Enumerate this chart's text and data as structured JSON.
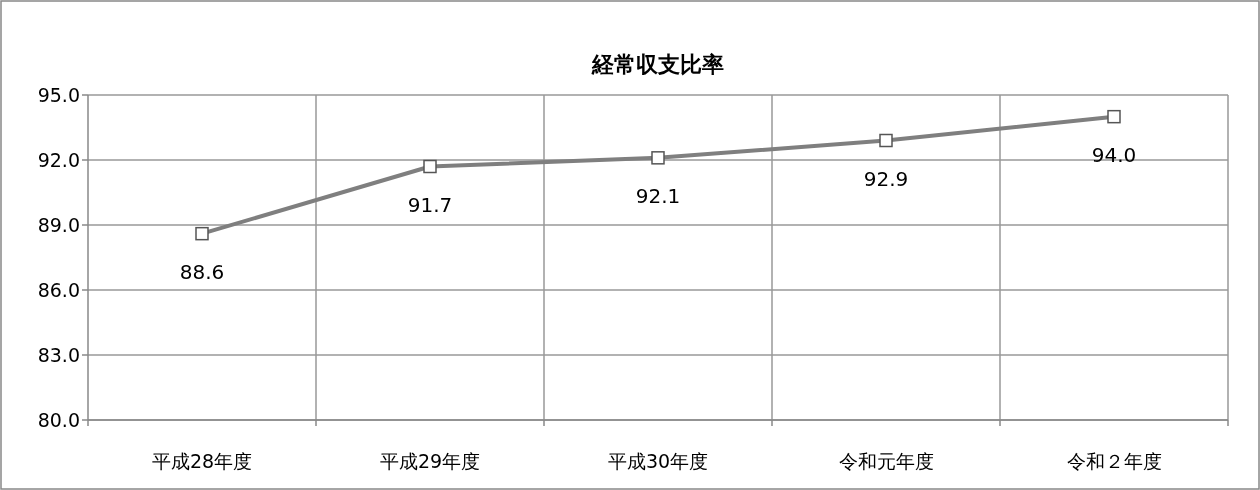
{
  "chart_data": {
    "type": "line",
    "title": "経常収支比率",
    "categories": [
      "平成28年度",
      "平成29年度",
      "平成30年度",
      "令和元年度",
      "令和２年度"
    ],
    "series": [
      {
        "color": "#7f7f7f",
        "values": [
          88.6,
          91.7,
          92.1,
          92.9,
          94.0
        ],
        "value_labels": [
          "88.6",
          "91.7",
          "92.1",
          "92.9",
          "94.0"
        ]
      }
    ],
    "ylim": [
      80,
      95
    ],
    "yticks": [
      {
        "value": 80,
        "label": "80.0"
      },
      {
        "value": 83,
        "label": "83.0"
      },
      {
        "value": 86,
        "label": "86.0"
      },
      {
        "value": 89,
        "label": "89.0"
      },
      {
        "value": 92,
        "label": "92.0"
      },
      {
        "value": 95,
        "label": "95.0"
      }
    ],
    "grid": true,
    "marker": "square",
    "line_style": "solid"
  }
}
